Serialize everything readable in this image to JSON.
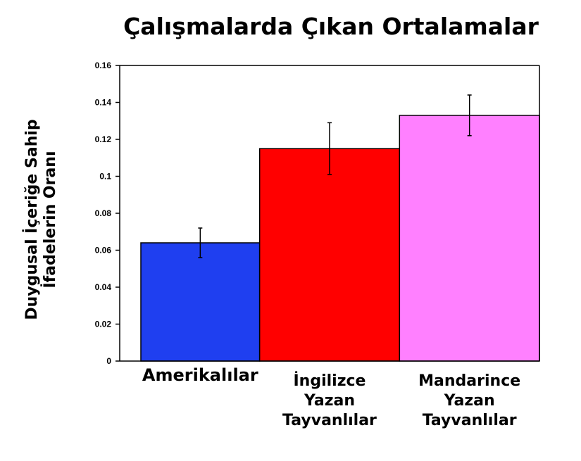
{
  "chart_data": {
    "type": "bar",
    "title": "Çalışmalarda Çıkan Ortalamalar",
    "ylabel_lines": [
      "Duygusal İçeriğe Sahip",
      "İfadelerin Oranı"
    ],
    "xlabel": "",
    "categories": [
      [
        "Amerikalılar"
      ],
      [
        "İngilizce",
        "Yazan",
        "Tayvanlılar"
      ],
      [
        "Mandarince",
        "Yazan",
        "Tayvanlılar"
      ]
    ],
    "values": [
      0.064,
      0.115,
      0.133
    ],
    "error": [
      0.008,
      0.014,
      0.011
    ],
    "colors": [
      "#1f3ff0",
      "#ff0000",
      "#ff80ff"
    ],
    "ylim": [
      0,
      0.16
    ],
    "yticks": [
      "0",
      "0.02",
      "0.04",
      "0.06",
      "0.08",
      "0.1",
      "0.12",
      "0.14",
      "0.16"
    ],
    "legend": "none",
    "grid": false
  }
}
